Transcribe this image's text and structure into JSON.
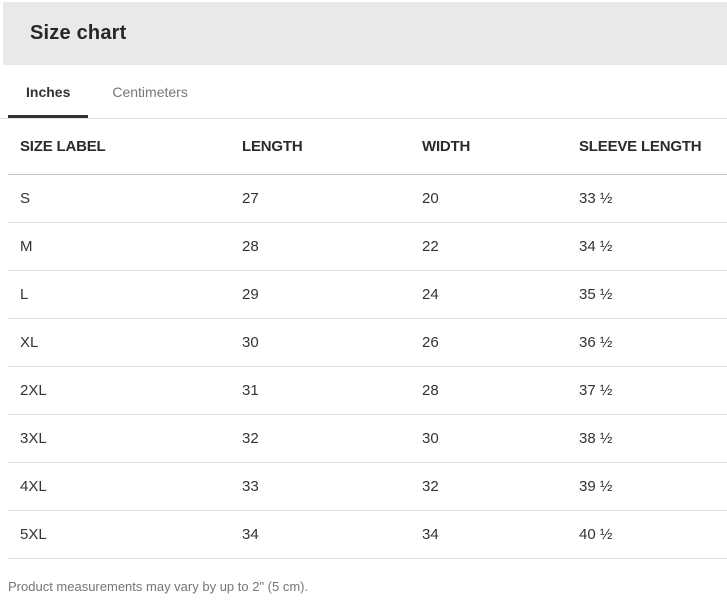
{
  "dialog": {
    "title": "Size chart"
  },
  "tabs": {
    "inches": {
      "label": "Inches",
      "active": true
    },
    "centimeters": {
      "label": "Centimeters",
      "active": false
    }
  },
  "table": {
    "columns": [
      "SIZE LABEL",
      "LENGTH",
      "WIDTH",
      "SLEEVE LENGTH"
    ],
    "unit": "Inches",
    "rows": [
      [
        "S",
        "27",
        "20",
        "33 ½"
      ],
      [
        "M",
        "28",
        "22",
        "34 ½"
      ],
      [
        "L",
        "29",
        "24",
        "35 ½"
      ],
      [
        "XL",
        "30",
        "26",
        "36 ½"
      ],
      [
        "2XL",
        "31",
        "28",
        "37 ½"
      ],
      [
        "3XL",
        "32",
        "30",
        "38 ½"
      ],
      [
        "4XL",
        "33",
        "32",
        "39 ½"
      ],
      [
        "5XL",
        "34",
        "34",
        "40 ½"
      ]
    ]
  },
  "footer": {
    "note": "Product measurements may vary by up to 2\" (5 cm)."
  },
  "colors": {
    "titlebar_bg": "#e9e9e9",
    "text_dark": "#333333",
    "text_gray": "#767676",
    "row_divider": "#e4e4e4",
    "header_divider": "#c6c6c6",
    "tab_underline": "#333333"
  }
}
